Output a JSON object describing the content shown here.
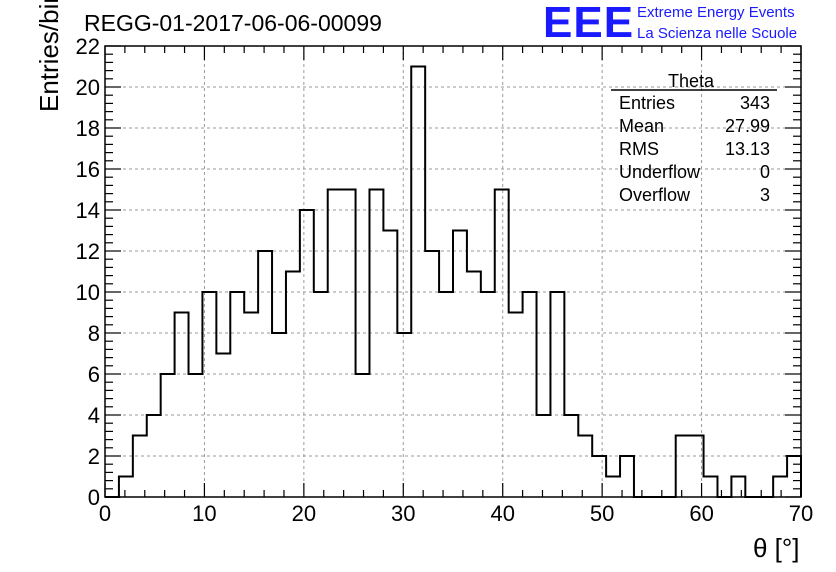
{
  "title": "REGG-01-2017-06-06-00099",
  "logo": {
    "mark": "EEE",
    "line1": "Extreme Energy Events",
    "line2": "La Scienza nelle Scuole",
    "color": "#1a1aff"
  },
  "stats": {
    "title": "Theta",
    "rows": [
      {
        "label": "Entries",
        "value": "343"
      },
      {
        "label": "Mean",
        "value": "27.99"
      },
      {
        "label": "RMS",
        "value": "13.13"
      },
      {
        "label": "Underflow",
        "value": "0"
      },
      {
        "label": "Overflow",
        "value": "3"
      }
    ]
  },
  "chart_data": {
    "type": "bar",
    "style": "step-histogram",
    "xlabel": "θ [°]",
    "ylabel": "Entries/bin",
    "xlim": [
      0,
      70
    ],
    "ylim": [
      0,
      22
    ],
    "xticks": [
      0,
      10,
      20,
      30,
      40,
      50,
      60,
      70
    ],
    "yticks": [
      0,
      2,
      4,
      6,
      8,
      10,
      12,
      14,
      16,
      18,
      20,
      22
    ],
    "grid": true,
    "bin_width": 1.4,
    "values": [
      0,
      1,
      3,
      4,
      6,
      9,
      6,
      10,
      7,
      10,
      9,
      12,
      8,
      11,
      14,
      10,
      15,
      15,
      6,
      15,
      13,
      8,
      21,
      12,
      10,
      13,
      11,
      10,
      15,
      9,
      10,
      4,
      10,
      4,
      3,
      2,
      1,
      2,
      0,
      0,
      0,
      3,
      3,
      1,
      0,
      1,
      0,
      0,
      1,
      2
    ]
  }
}
